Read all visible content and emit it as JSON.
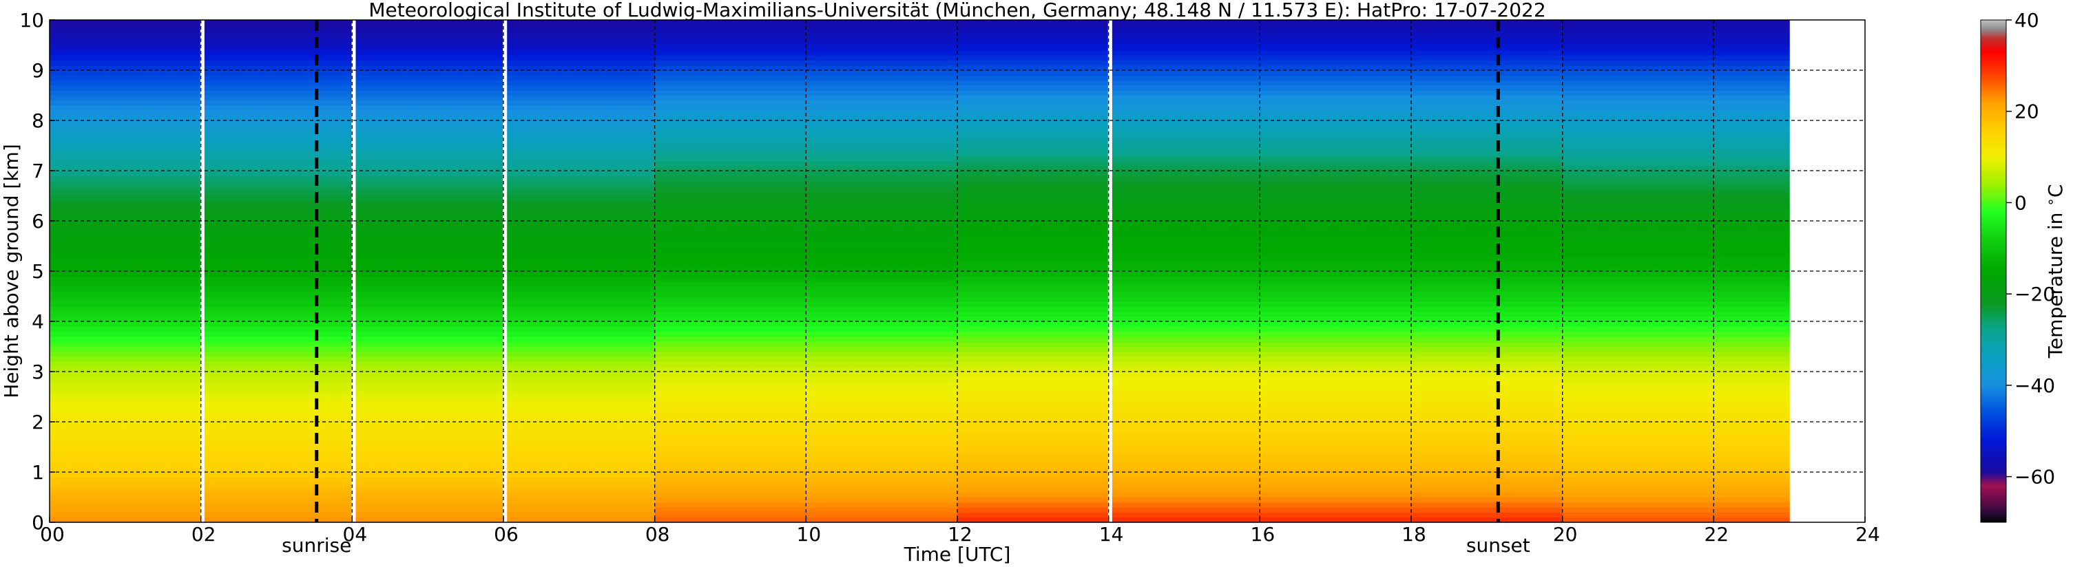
{
  "chart_data": {
    "type": "heatmap",
    "title": "Meteorological Institute of Ludwig-Maximilians-Universität (München, Germany; 48.148 N / 11.573 E):    HatPro: 17-07-2022",
    "xlabel": "Time [UTC]",
    "ylabel": "Height above ground [km]",
    "xlim": [
      0,
      24
    ],
    "ylim": [
      0,
      10
    ],
    "x_ticks": [
      0,
      2,
      4,
      6,
      8,
      10,
      12,
      14,
      16,
      18,
      20,
      22,
      24
    ],
    "x_tick_labels": [
      "00",
      "02",
      "04",
      "06",
      "08",
      "10",
      "12",
      "14",
      "16",
      "18",
      "20",
      "22",
      "24"
    ],
    "y_ticks": [
      0,
      1,
      2,
      3,
      4,
      5,
      6,
      7,
      8,
      9,
      10
    ],
    "y_tick_labels": [
      "0",
      "1",
      "2",
      "3",
      "4",
      "5",
      "6",
      "7",
      "8",
      "9",
      "10"
    ],
    "grid": true,
    "data_end_time": 23.0,
    "data_gaps": [
      2.02,
      4.02,
      6.02,
      14.02
    ],
    "annotations": [
      {
        "label": "sunrise",
        "time": 3.53
      },
      {
        "label": "sunset",
        "time": 19.15
      }
    ],
    "colorbar": {
      "label": "Temperature in $^\\circ$C",
      "range": [
        -70,
        40
      ],
      "ticks": [
        -60,
        -40,
        -20,
        0,
        20,
        40
      ],
      "tick_labels": [
        "−60",
        "−40",
        "−20",
        "0",
        "20",
        "40"
      ],
      "stops": [
        {
          "v": -70,
          "color": "#000000"
        },
        {
          "v": -68,
          "color": "#2a0a3a"
        },
        {
          "v": -65,
          "color": "#6a0a4a"
        },
        {
          "v": -62,
          "color": "#a01050"
        },
        {
          "v": -59,
          "color": "#1a0aa0"
        },
        {
          "v": -52,
          "color": "#0018d8"
        },
        {
          "v": -46,
          "color": "#0050e0"
        },
        {
          "v": -40,
          "color": "#1690e0"
        },
        {
          "v": -34,
          "color": "#0aa0c0"
        },
        {
          "v": -28,
          "color": "#0aa590"
        },
        {
          "v": -22,
          "color": "#0a9a20"
        },
        {
          "v": -15,
          "color": "#00a800"
        },
        {
          "v": -8,
          "color": "#10d010"
        },
        {
          "v": -2,
          "color": "#20ff20"
        },
        {
          "v": 4,
          "color": "#a0f000"
        },
        {
          "v": 10,
          "color": "#f0f000"
        },
        {
          "v": 16,
          "color": "#ffd000"
        },
        {
          "v": 22,
          "color": "#ffa000"
        },
        {
          "v": 28,
          "color": "#ff4000"
        },
        {
          "v": 33,
          "color": "#ff0000"
        },
        {
          "v": 36,
          "color": "#c03030"
        },
        {
          "v": 38,
          "color": "#909090"
        },
        {
          "v": 40,
          "color": "#c0c0c0"
        }
      ]
    },
    "temperature_profiles": [
      {
        "time_range": [
          0,
          8
        ],
        "height_km": [
          0,
          0.5,
          1,
          2,
          3,
          4,
          5,
          6,
          7,
          8,
          9,
          9.5,
          10
        ],
        "temp_c": [
          23,
          20,
          16,
          12,
          6,
          -6,
          -15,
          -19,
          -28,
          -38,
          -48,
          -55,
          -59
        ]
      },
      {
        "time_range": [
          8,
          12
        ],
        "height_km": [
          0,
          0.5,
          1,
          2,
          3,
          4,
          5,
          6,
          7,
          8,
          9,
          9.5,
          10
        ],
        "temp_c": [
          26,
          22,
          18,
          13,
          8,
          -4,
          -14,
          -18,
          -25,
          -36,
          -46,
          -54,
          -58
        ]
      },
      {
        "time_range": [
          12,
          20
        ],
        "height_km": [
          0,
          0.5,
          1,
          2,
          3,
          4,
          5,
          6,
          7,
          8,
          9,
          9.5,
          10
        ],
        "temp_c": [
          30,
          23,
          19,
          14,
          9,
          -3,
          -13,
          -17,
          -24,
          -35,
          -46,
          -53,
          -58
        ]
      },
      {
        "time_range": [
          20,
          23
        ],
        "height_km": [
          0,
          0.5,
          1,
          2,
          3,
          4,
          5,
          6,
          7,
          8,
          9,
          9.5,
          10
        ],
        "temp_c": [
          27,
          22,
          18,
          13,
          8,
          -3,
          -13,
          -18,
          -26,
          -36,
          -46,
          -54,
          -58
        ]
      }
    ]
  }
}
